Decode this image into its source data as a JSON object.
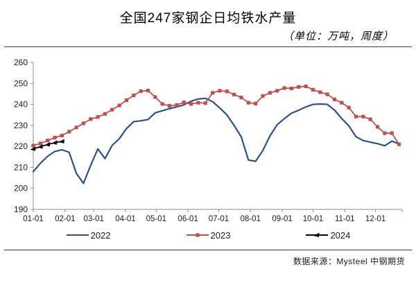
{
  "chart_data": {
    "type": "line",
    "title": "全国247家钢企日均铁水产量",
    "subtitle": "（单位：万吨，周度）",
    "source": "数据来源：Mysteel 中钢期货",
    "grid": false,
    "legend_position": "bottom",
    "y_axis": {
      "min": 190,
      "max": 260,
      "ticks": [
        190,
        200,
        210,
        220,
        230,
        240,
        250,
        260
      ]
    },
    "x_axis": {
      "tick_labels": [
        "01-01",
        "02-01",
        "03-01",
        "04-01",
        "05-01",
        "06-01",
        "07-01",
        "08-01",
        "09-01",
        "10-01",
        "11-01",
        "12-01"
      ],
      "month_start_days": [
        0,
        31,
        59,
        90,
        120,
        151,
        181,
        212,
        243,
        273,
        304,
        334
      ],
      "day_span": 360,
      "points_interval_days": 7
    },
    "series": [
      {
        "name": "2022",
        "color": "#2a5187",
        "marker": "none",
        "line_width": 2.2,
        "values": [
          208,
          212,
          215.3,
          217.6,
          218.4,
          217.2,
          207.2,
          202.4,
          211,
          218.8,
          214.2,
          220.5,
          223.7,
          228.5,
          231.8,
          232.2,
          232.8,
          236,
          237,
          238,
          238.8,
          239.8,
          241.5,
          242.6,
          242.9,
          241.3,
          238.3,
          235,
          230,
          224.5,
          213.5,
          212.9,
          218,
          225,
          230.3,
          233.2,
          235.8,
          237.2,
          238.8,
          240,
          240.2,
          240,
          237.3,
          233.3,
          229.8,
          224.6,
          222.8,
          222,
          221.3,
          220.3,
          222.5,
          221.2
        ]
      },
      {
        "name": "2023",
        "color": "#c0504d",
        "marker": "square",
        "line_width": 1.8,
        "values": [
          220.4,
          221.4,
          222.8,
          224.2,
          225.2,
          227,
          229,
          231,
          233,
          234,
          235.5,
          237.5,
          239.5,
          242,
          244.3,
          246.3,
          246.6,
          243.5,
          240.2,
          239.3,
          239.7,
          241,
          240.2,
          240.8,
          240.6,
          245.5,
          246.5,
          246.2,
          244.7,
          243.3,
          240.8,
          240.4,
          244,
          245.5,
          246.5,
          247.8,
          247.6,
          248.3,
          248.6,
          247,
          245.8,
          244.8,
          242.4,
          240.8,
          238.5,
          234.2,
          234.2,
          232.9,
          229.3,
          226.3,
          226.3,
          221
        ]
      },
      {
        "name": "2024",
        "color": "#000000",
        "marker": "triangle",
        "line_width": 1.8,
        "values": [
          218.8,
          219.9,
          220.9,
          221.8,
          222.4
        ]
      }
    ],
    "axis_color": "#8c8c8c",
    "tick_text_color": "#1a1a1a"
  }
}
